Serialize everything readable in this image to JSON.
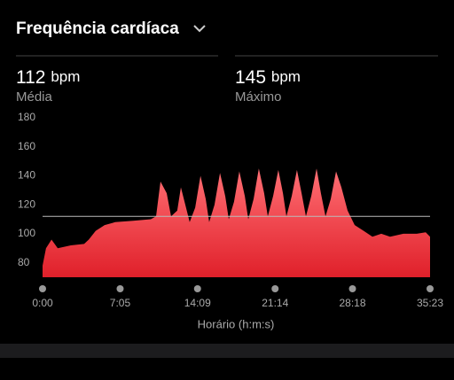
{
  "header": {
    "title": "Frequência cardíaca"
  },
  "stats": [
    {
      "value": 112,
      "unit": "bpm",
      "label": "Média"
    },
    {
      "value": 145,
      "unit": "bpm",
      "label": "Máximo"
    }
  ],
  "chart_data": {
    "type": "area",
    "xlabel": "Horário (h:m:s)",
    "color": "#f0303a",
    "x": [
      0,
      19,
      49,
      83,
      155,
      228,
      253,
      291,
      340,
      398,
      496,
      593,
      622,
      646,
      680,
      704,
      738,
      758,
      782,
      806,
      836,
      865,
      894,
      913,
      942,
      972,
      1001,
      1020,
      1049,
      1078,
      1108,
      1127,
      1156,
      1185,
      1214,
      1234,
      1263,
      1292,
      1317,
      1336,
      1365,
      1394,
      1419,
      1443,
      1472,
      1501,
      1525,
      1550,
      1579,
      1608,
      1637,
      1671,
      1710,
      1759,
      1807,
      1856,
      1904,
      1977,
      2050,
      2099,
      2123
    ],
    "values": [
      78,
      90,
      96,
      90,
      92,
      93,
      96,
      102,
      106,
      108,
      109,
      110,
      112,
      136,
      128,
      112,
      116,
      132,
      120,
      108,
      118,
      140,
      124,
      108,
      120,
      142,
      126,
      110,
      122,
      143,
      126,
      110,
      124,
      145,
      128,
      112,
      126,
      144,
      128,
      112,
      126,
      144,
      128,
      112,
      126,
      145,
      128,
      112,
      124,
      143,
      132,
      116,
      106,
      102,
      98,
      100,
      98,
      100,
      100,
      101,
      98
    ],
    "xlim": [
      0,
      2123
    ],
    "ylim": [
      70,
      180
    ],
    "xticks": [
      {
        "value": 0,
        "label": "0:00"
      },
      {
        "value": 425,
        "label": "7:05"
      },
      {
        "value": 849,
        "label": "14:09"
      },
      {
        "value": 1274,
        "label": "21:14"
      },
      {
        "value": 1698,
        "label": "28:18"
      },
      {
        "value": 2123,
        "label": "35:23"
      }
    ],
    "yticks": [
      80,
      100,
      120,
      140,
      160,
      180
    ]
  }
}
